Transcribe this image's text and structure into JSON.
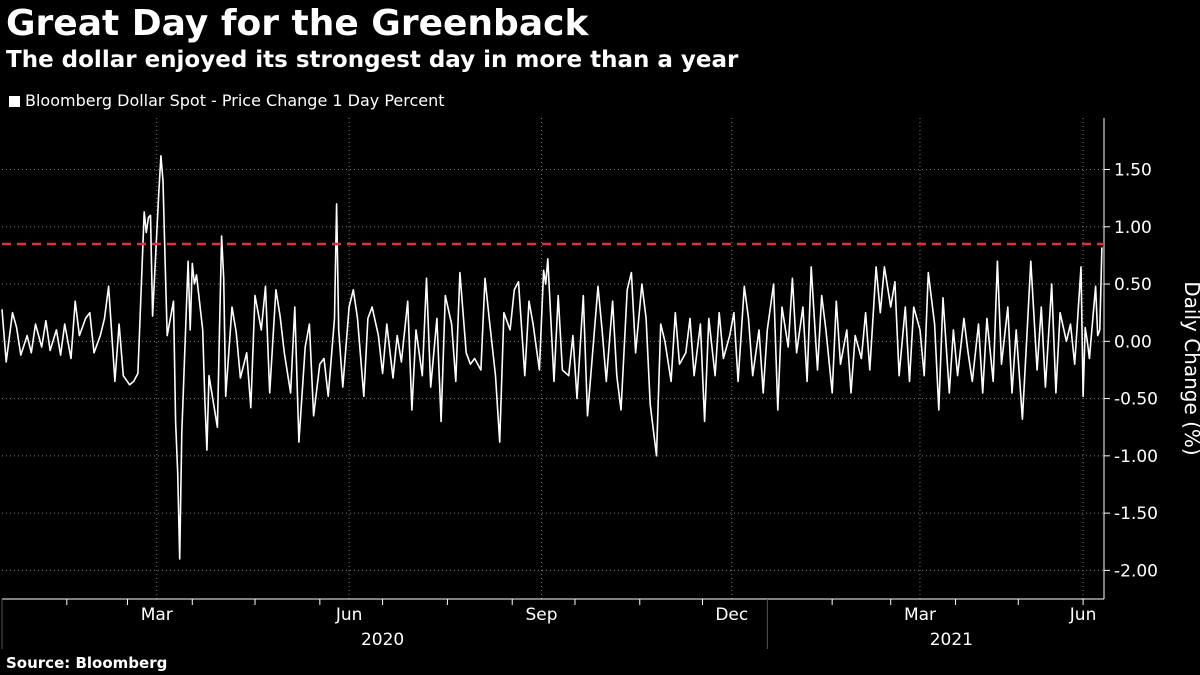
{
  "header": {
    "title": "Great Day for the Greenback",
    "subtitle": "The dollar enjoyed its strongest day in more than a year"
  },
  "footer": {
    "source": "Source: Bloomberg"
  },
  "colors": {
    "background": "#000000",
    "series": "#ffffff",
    "reference_line": "#e0313a",
    "grid": "#777777"
  },
  "chart_data": {
    "type": "line",
    "legend": "top-left",
    "grid": true,
    "y_axis_side": "right",
    "ylabel": "Daily Change (%)",
    "ylim": [
      -2.25,
      1.95
    ],
    "yticks": [
      1.5,
      1.0,
      0.5,
      0.0,
      -0.5,
      -1.0,
      -1.5,
      -2.0
    ],
    "ytick_labels": [
      "1.50",
      "1.00",
      "0.50",
      "0.00",
      "-0.50",
      "-1.00",
      "-1.50",
      "-2.00"
    ],
    "xlim": [
      "2020-01-01",
      "2021-06-11"
    ],
    "xticks": [
      {
        "label": "Mar",
        "date": "2020-03-15"
      },
      {
        "label": "Jun",
        "date": "2020-06-15"
      },
      {
        "label": "Sep",
        "date": "2020-09-15"
      },
      {
        "label": "Dec",
        "date": "2020-12-15"
      },
      {
        "label": "Mar",
        "date": "2021-03-15"
      },
      {
        "label": "Jun",
        "date": "2021-06-01"
      }
    ],
    "year_labels": [
      {
        "label": "2020",
        "date": "2020-07-01"
      },
      {
        "label": "2021",
        "date": "2021-03-30"
      }
    ],
    "reference_line": {
      "y": 0.85,
      "style": "dashed"
    },
    "series": [
      {
        "name": "Bloomberg Dollar Spot - Price Change 1 Day Percent",
        "points": [
          [
            "2020-01-01",
            0.28
          ],
          [
            "2020-01-03",
            -0.18
          ],
          [
            "2020-01-06",
            0.25
          ],
          [
            "2020-01-08",
            0.12
          ],
          [
            "2020-01-10",
            -0.12
          ],
          [
            "2020-01-13",
            0.05
          ],
          [
            "2020-01-15",
            -0.1
          ],
          [
            "2020-01-17",
            0.15
          ],
          [
            "2020-01-20",
            -0.05
          ],
          [
            "2020-01-22",
            0.18
          ],
          [
            "2020-01-24",
            -0.08
          ],
          [
            "2020-01-27",
            0.1
          ],
          [
            "2020-01-29",
            -0.12
          ],
          [
            "2020-01-31",
            0.15
          ],
          [
            "2020-02-03",
            -0.15
          ],
          [
            "2020-02-05",
            0.35
          ],
          [
            "2020-02-07",
            0.05
          ],
          [
            "2020-02-10",
            0.2
          ],
          [
            "2020-02-12",
            0.25
          ],
          [
            "2020-02-14",
            -0.1
          ],
          [
            "2020-02-17",
            0.05
          ],
          [
            "2020-02-19",
            0.2
          ],
          [
            "2020-02-21",
            0.48
          ],
          [
            "2020-02-24",
            -0.35
          ],
          [
            "2020-02-26",
            0.15
          ],
          [
            "2020-02-28",
            -0.3
          ],
          [
            "2020-03-02",
            -0.38
          ],
          [
            "2020-03-04",
            -0.35
          ],
          [
            "2020-03-06",
            -0.28
          ],
          [
            "2020-03-09",
            1.13
          ],
          [
            "2020-03-10",
            0.95
          ],
          [
            "2020-03-11",
            1.08
          ],
          [
            "2020-03-12",
            1.1
          ],
          [
            "2020-03-13",
            0.22
          ],
          [
            "2020-03-16",
            1.3
          ],
          [
            "2020-03-17",
            1.62
          ],
          [
            "2020-03-18",
            1.4
          ],
          [
            "2020-03-19",
            0.7
          ],
          [
            "2020-03-20",
            0.05
          ],
          [
            "2020-03-23",
            0.35
          ],
          [
            "2020-03-24",
            -0.7
          ],
          [
            "2020-03-25",
            -1.15
          ],
          [
            "2020-03-26",
            -1.9
          ],
          [
            "2020-03-27",
            -0.8
          ],
          [
            "2020-03-30",
            0.7
          ],
          [
            "2020-03-31",
            0.1
          ],
          [
            "2020-04-01",
            0.68
          ],
          [
            "2020-04-02",
            0.5
          ],
          [
            "2020-04-03",
            0.58
          ],
          [
            "2020-04-06",
            0.1
          ],
          [
            "2020-04-07",
            -0.5
          ],
          [
            "2020-04-08",
            -0.95
          ],
          [
            "2020-04-09",
            -0.3
          ],
          [
            "2020-04-13",
            -0.75
          ],
          [
            "2020-04-14",
            0.1
          ],
          [
            "2020-04-15",
            0.92
          ],
          [
            "2020-04-16",
            0.55
          ],
          [
            "2020-04-17",
            -0.48
          ],
          [
            "2020-04-20",
            0.3
          ],
          [
            "2020-04-22",
            0.08
          ],
          [
            "2020-04-24",
            -0.32
          ],
          [
            "2020-04-27",
            -0.1
          ],
          [
            "2020-04-29",
            -0.58
          ],
          [
            "2020-05-01",
            0.4
          ],
          [
            "2020-05-04",
            0.1
          ],
          [
            "2020-05-06",
            0.48
          ],
          [
            "2020-05-08",
            -0.45
          ],
          [
            "2020-05-11",
            0.45
          ],
          [
            "2020-05-13",
            0.22
          ],
          [
            "2020-05-15",
            -0.1
          ],
          [
            "2020-05-18",
            -0.45
          ],
          [
            "2020-05-20",
            0.3
          ],
          [
            "2020-05-22",
            -0.88
          ],
          [
            "2020-05-25",
            -0.05
          ],
          [
            "2020-05-27",
            0.15
          ],
          [
            "2020-05-29",
            -0.65
          ],
          [
            "2020-06-01",
            -0.2
          ],
          [
            "2020-06-03",
            -0.15
          ],
          [
            "2020-06-05",
            -0.48
          ],
          [
            "2020-06-08",
            0.2
          ],
          [
            "2020-06-09",
            1.2
          ],
          [
            "2020-06-10",
            0.1
          ],
          [
            "2020-06-12",
            -0.4
          ],
          [
            "2020-06-15",
            0.3
          ],
          [
            "2020-06-17",
            0.45
          ],
          [
            "2020-06-19",
            0.2
          ],
          [
            "2020-06-22",
            -0.48
          ],
          [
            "2020-06-24",
            0.2
          ],
          [
            "2020-06-26",
            0.3
          ],
          [
            "2020-06-29",
            0.05
          ],
          [
            "2020-07-01",
            -0.28
          ],
          [
            "2020-07-03",
            0.15
          ],
          [
            "2020-07-06",
            -0.32
          ],
          [
            "2020-07-08",
            0.05
          ],
          [
            "2020-07-10",
            -0.18
          ],
          [
            "2020-07-13",
            0.35
          ],
          [
            "2020-07-15",
            -0.6
          ],
          [
            "2020-07-17",
            0.1
          ],
          [
            "2020-07-20",
            -0.3
          ],
          [
            "2020-07-22",
            0.55
          ],
          [
            "2020-07-24",
            -0.4
          ],
          [
            "2020-07-27",
            0.2
          ],
          [
            "2020-07-29",
            -0.7
          ],
          [
            "2020-07-31",
            0.4
          ],
          [
            "2020-08-03",
            0.15
          ],
          [
            "2020-08-05",
            -0.35
          ],
          [
            "2020-08-07",
            0.6
          ],
          [
            "2020-08-10",
            -0.1
          ],
          [
            "2020-08-12",
            -0.2
          ],
          [
            "2020-08-14",
            -0.15
          ],
          [
            "2020-08-17",
            -0.25
          ],
          [
            "2020-08-19",
            0.55
          ],
          [
            "2020-08-21",
            0.2
          ],
          [
            "2020-08-24",
            -0.3
          ],
          [
            "2020-08-26",
            -0.88
          ],
          [
            "2020-08-28",
            0.25
          ],
          [
            "2020-08-31",
            0.1
          ],
          [
            "2020-09-02",
            0.45
          ],
          [
            "2020-09-04",
            0.52
          ],
          [
            "2020-09-07",
            -0.3
          ],
          [
            "2020-09-09",
            0.35
          ],
          [
            "2020-09-11",
            0.15
          ],
          [
            "2020-09-14",
            -0.25
          ],
          [
            "2020-09-16",
            0.62
          ],
          [
            "2020-09-17",
            0.5
          ],
          [
            "2020-09-18",
            0.72
          ],
          [
            "2020-09-21",
            -0.35
          ],
          [
            "2020-09-23",
            0.4
          ],
          [
            "2020-09-25",
            -0.25
          ],
          [
            "2020-09-28",
            -0.3
          ],
          [
            "2020-09-30",
            0.05
          ],
          [
            "2020-10-02",
            -0.5
          ],
          [
            "2020-10-05",
            0.4
          ],
          [
            "2020-10-07",
            -0.65
          ],
          [
            "2020-10-09",
            -0.2
          ],
          [
            "2020-10-12",
            0.48
          ],
          [
            "2020-10-14",
            0.1
          ],
          [
            "2020-10-16",
            -0.35
          ],
          [
            "2020-10-19",
            0.35
          ],
          [
            "2020-10-21",
            -0.3
          ],
          [
            "2020-10-23",
            -0.6
          ],
          [
            "2020-10-26",
            0.45
          ],
          [
            "2020-10-28",
            0.6
          ],
          [
            "2020-10-30",
            -0.1
          ],
          [
            "2020-11-02",
            0.5
          ],
          [
            "2020-11-04",
            0.2
          ],
          [
            "2020-11-06",
            -0.55
          ],
          [
            "2020-11-09",
            -1.0
          ],
          [
            "2020-11-11",
            0.15
          ],
          [
            "2020-11-13",
            0.0
          ],
          [
            "2020-11-16",
            -0.35
          ],
          [
            "2020-11-18",
            0.25
          ],
          [
            "2020-11-20",
            -0.2
          ],
          [
            "2020-11-23",
            -0.1
          ],
          [
            "2020-11-25",
            0.2
          ],
          [
            "2020-11-27",
            -0.3
          ],
          [
            "2020-11-30",
            0.15
          ],
          [
            "2020-12-02",
            -0.7
          ],
          [
            "2020-12-04",
            0.2
          ],
          [
            "2020-12-07",
            -0.3
          ],
          [
            "2020-12-09",
            0.25
          ],
          [
            "2020-12-11",
            -0.15
          ],
          [
            "2020-12-14",
            0.05
          ],
          [
            "2020-12-16",
            0.25
          ],
          [
            "2020-12-18",
            -0.35
          ],
          [
            "2020-12-21",
            0.48
          ],
          [
            "2020-12-23",
            0.2
          ],
          [
            "2020-12-25",
            -0.3
          ],
          [
            "2020-12-28",
            0.1
          ],
          [
            "2020-12-30",
            -0.45
          ],
          [
            "2021-01-01",
            0.1
          ],
          [
            "2021-01-04",
            0.5
          ],
          [
            "2021-01-06",
            -0.6
          ],
          [
            "2021-01-08",
            0.3
          ],
          [
            "2021-01-11",
            -0.05
          ],
          [
            "2021-01-13",
            0.55
          ],
          [
            "2021-01-15",
            -0.1
          ],
          [
            "2021-01-18",
            0.3
          ],
          [
            "2021-01-20",
            -0.35
          ],
          [
            "2021-01-22",
            0.65
          ],
          [
            "2021-01-25",
            -0.25
          ],
          [
            "2021-01-27",
            0.4
          ],
          [
            "2021-01-29",
            0.1
          ],
          [
            "2021-02-01",
            -0.45
          ],
          [
            "2021-02-03",
            0.35
          ],
          [
            "2021-02-05",
            -0.2
          ],
          [
            "2021-02-08",
            0.1
          ],
          [
            "2021-02-10",
            -0.45
          ],
          [
            "2021-02-12",
            0.05
          ],
          [
            "2021-02-15",
            -0.15
          ],
          [
            "2021-02-17",
            0.25
          ],
          [
            "2021-02-19",
            -0.25
          ],
          [
            "2021-02-22",
            0.65
          ],
          [
            "2021-02-24",
            0.25
          ],
          [
            "2021-02-26",
            0.65
          ],
          [
            "2021-03-01",
            0.3
          ],
          [
            "2021-03-03",
            0.52
          ],
          [
            "2021-03-05",
            -0.3
          ],
          [
            "2021-03-08",
            0.3
          ],
          [
            "2021-03-10",
            -0.35
          ],
          [
            "2021-03-12",
            0.3
          ],
          [
            "2021-03-15",
            0.1
          ],
          [
            "2021-03-17",
            -0.3
          ],
          [
            "2021-03-19",
            0.6
          ],
          [
            "2021-03-22",
            0.15
          ],
          [
            "2021-03-24",
            -0.6
          ],
          [
            "2021-03-26",
            0.38
          ],
          [
            "2021-03-29",
            -0.45
          ],
          [
            "2021-03-31",
            0.1
          ],
          [
            "2021-04-02",
            -0.3
          ],
          [
            "2021-04-05",
            0.2
          ],
          [
            "2021-04-07",
            -0.1
          ],
          [
            "2021-04-09",
            -0.35
          ],
          [
            "2021-04-12",
            0.15
          ],
          [
            "2021-04-14",
            -0.45
          ],
          [
            "2021-04-16",
            0.2
          ],
          [
            "2021-04-19",
            -0.35
          ],
          [
            "2021-04-21",
            0.7
          ],
          [
            "2021-04-23",
            -0.2
          ],
          [
            "2021-04-26",
            0.3
          ],
          [
            "2021-04-28",
            -0.45
          ],
          [
            "2021-04-30",
            0.1
          ],
          [
            "2021-05-03",
            -0.68
          ],
          [
            "2021-05-05",
            0.0
          ],
          [
            "2021-05-07",
            0.7
          ],
          [
            "2021-05-10",
            -0.25
          ],
          [
            "2021-05-12",
            0.3
          ],
          [
            "2021-05-14",
            -0.4
          ],
          [
            "2021-05-17",
            0.5
          ],
          [
            "2021-05-19",
            -0.45
          ],
          [
            "2021-05-21",
            0.25
          ],
          [
            "2021-05-24",
            0.0
          ],
          [
            "2021-05-26",
            0.15
          ],
          [
            "2021-05-28",
            -0.2
          ],
          [
            "2021-05-31",
            0.65
          ],
          [
            "2021-06-01",
            -0.48
          ],
          [
            "2021-06-02",
            0.12
          ],
          [
            "2021-06-03",
            0.0
          ],
          [
            "2021-06-04",
            -0.15
          ],
          [
            "2021-06-07",
            0.48
          ],
          [
            "2021-06-08",
            0.05
          ],
          [
            "2021-06-09",
            0.1
          ],
          [
            "2021-06-10",
            0.82
          ]
        ]
      }
    ]
  }
}
